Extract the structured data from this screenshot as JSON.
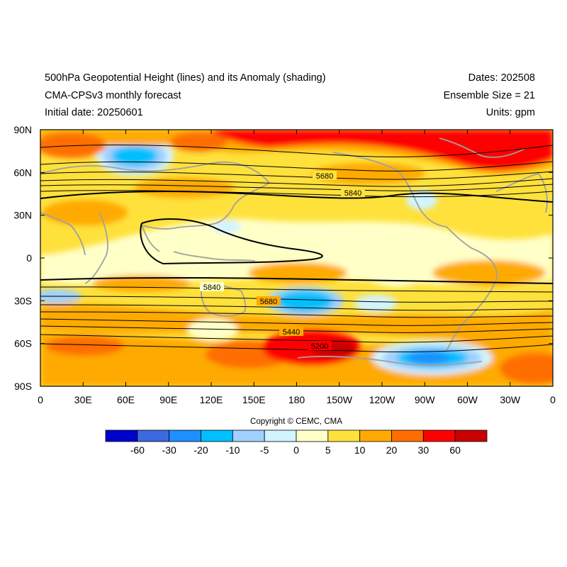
{
  "header": {
    "title_line1": "500hPa Geopotential Height (lines) and its Anomaly (shading)",
    "title_line2": "CMA-CPSv3 monthly forecast",
    "title_line3": "Initial date: 20250601",
    "right_line1": "Dates: 202508",
    "right_line2": "Ensemble Size = 21",
    "right_line3": "Units: gpm"
  },
  "map": {
    "lat_labels": [
      "90N",
      "60N",
      "30N",
      "0",
      "30S",
      "60S",
      "90S"
    ],
    "lon_labels": [
      "0",
      "30E",
      "60E",
      "90E",
      "120E",
      "150E",
      "180",
      "150W",
      "120W",
      "90W",
      "60W",
      "30W",
      "0"
    ],
    "contour_labels": [
      "5680",
      "5840",
      "5840",
      "5680",
      "5440",
      "5200"
    ],
    "coastline_color": "#a0a0a0",
    "contour_color": "#000000"
  },
  "copyright": "Copyright © CEMC, CMA",
  "colorbar": {
    "labels": [
      "-60",
      "-30",
      "-20",
      "-10",
      "-5",
      "0",
      "5",
      "10",
      "20",
      "30",
      "60"
    ],
    "colors": [
      "#0000cd",
      "#3c68e0",
      "#1e8fff",
      "#00bfff",
      "#a0d0ff",
      "#d2f4ff",
      "#ffffc8",
      "#ffe13c",
      "#ffaa00",
      "#ff6e00",
      "#ff0000",
      "#c80000"
    ]
  }
}
